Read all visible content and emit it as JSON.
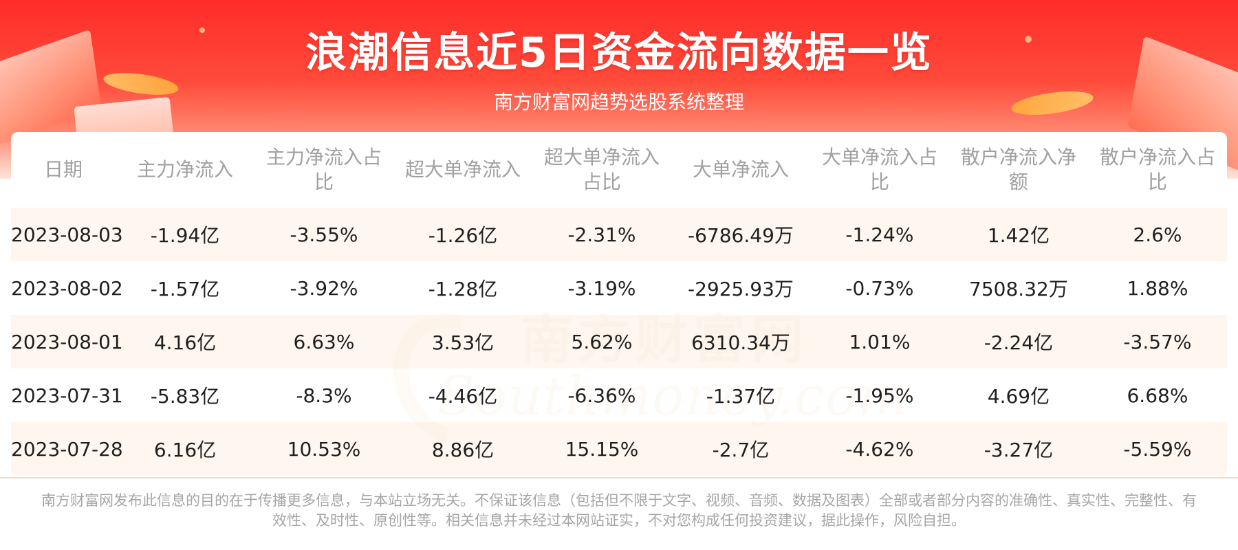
{
  "header": {
    "title": "浪潮信息近5日资金流向数据一览",
    "subtitle": "南方财富网趋势选股系统整理"
  },
  "watermark": {
    "cn": "南方财富网",
    "en": "Southmoney.com"
  },
  "table": {
    "columns": [
      "日期",
      "主力净流入",
      "主力净流入占比",
      "超大单净流入",
      "超大单净流入占比",
      "大单净流入",
      "大单净流入占比",
      "散户净流入净额",
      "散户净流入占比"
    ],
    "rows": [
      [
        "2023-08-03",
        "-1.94亿",
        "-3.55%",
        "-1.26亿",
        "-2.31%",
        "-6786.49万",
        "-1.24%",
        "1.42亿",
        "2.6%"
      ],
      [
        "2023-08-02",
        "-1.57亿",
        "-3.92%",
        "-1.28亿",
        "-3.19%",
        "-2925.93万",
        "-0.73%",
        "7508.32万",
        "1.88%"
      ],
      [
        "2023-08-01",
        "4.16亿",
        "6.63%",
        "3.53亿",
        "5.62%",
        "6310.34万",
        "1.01%",
        "-2.24亿",
        "-3.57%"
      ],
      [
        "2023-07-31",
        "-5.83亿",
        "-8.3%",
        "-4.46亿",
        "-6.36%",
        "-1.37亿",
        "-1.95%",
        "4.69亿",
        "6.68%"
      ],
      [
        "2023-07-28",
        "6.16亿",
        "10.53%",
        "8.86亿",
        "15.15%",
        "-2.7亿",
        "-4.62%",
        "-3.27亿",
        "-5.59%"
      ]
    ]
  },
  "footer": {
    "disclaimer": "南方财富网发布此信息的目的在于传播更多信息，与本站立场无关。不保证该信息（包括但不限于文字、视频、音频、数据及图表）全部或者部分内容的准确性、真实性、完整性、有效性、及时性、原创性等。相关信息并未经过本网站证实，不对您构成任何投资建议，据此操作，风险自担。"
  }
}
